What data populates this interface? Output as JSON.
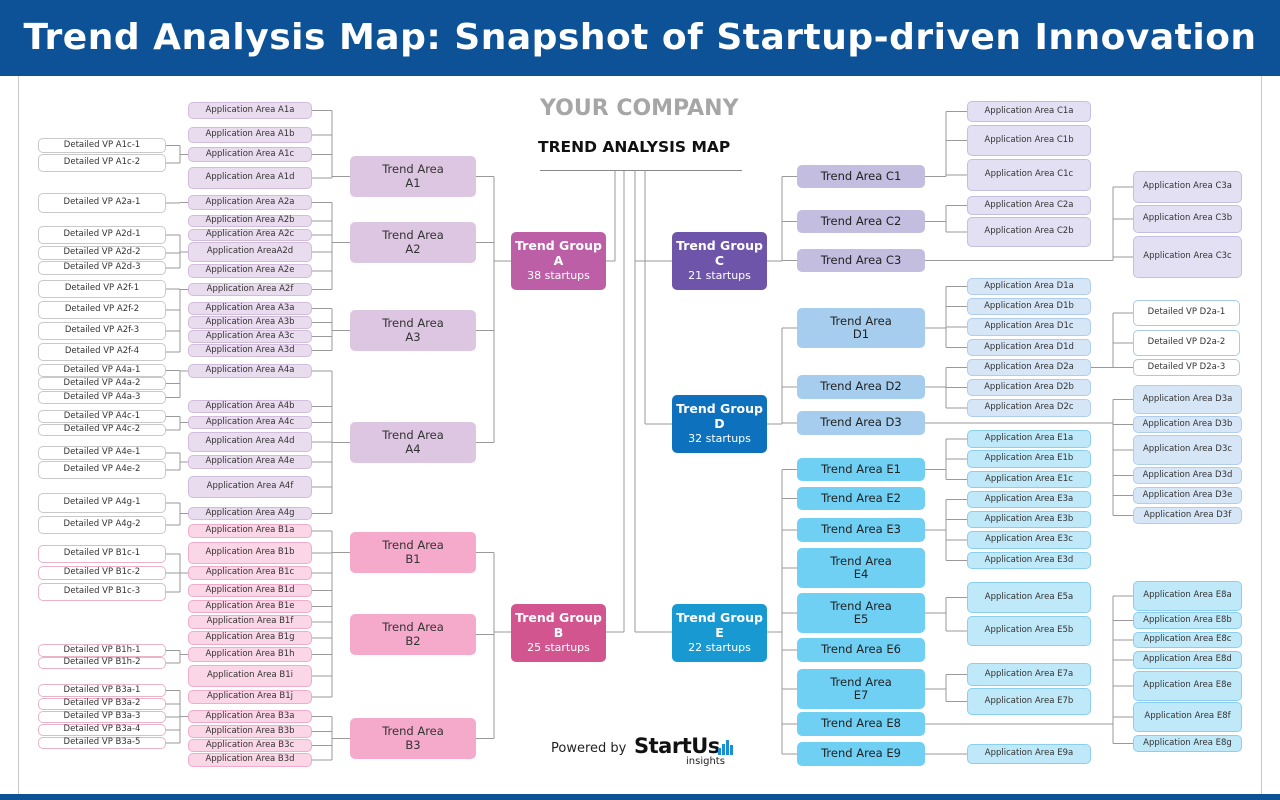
{
  "header": {
    "title": "Trend Analysis Map: Snapshot of Startup-driven Innovation"
  },
  "center": {
    "company": "YOUR COMPANY",
    "map_title": "TREND ANALYSIS MAP",
    "powered_by": "Powered by",
    "logo_brand": "StartUs",
    "logo_sub": "insights"
  },
  "trend_groups": [
    {
      "id": "A",
      "title": "Trend Group\nA",
      "startups": "38 startups"
    },
    {
      "id": "B",
      "title": "Trend Group\nB",
      "startups": "25 startups"
    },
    {
      "id": "C",
      "title": "Trend Group\nC",
      "startups": "21 startups"
    },
    {
      "id": "D",
      "title": "Trend Group\nD",
      "startups": "32 startups"
    },
    {
      "id": "E",
      "title": "Trend Group\nE",
      "startups": "22 startups"
    }
  ],
  "trend_areas": {
    "A1": "Trend Area\nA1",
    "A2": "Trend Area\nA2",
    "A3": "Trend Area\nA3",
    "A4": "Trend Area\nA4",
    "B1": "Trend Area\nB1",
    "B2": "Trend Area\nB2",
    "B3": "Trend Area\nB3",
    "C1": "Trend Area C1",
    "C2": "Trend Area C2",
    "C3": "Trend Area C3",
    "D1": "Trend Area\nD1",
    "D2": "Trend Area D2",
    "D3": "Trend Area D3",
    "E1": "Trend Area E1",
    "E2": "Trend Area E2",
    "E3": "Trend Area E3",
    "E4": "Trend Area\nE4",
    "E5": "Trend Area\nE5",
    "E6": "Trend Area E6",
    "E7": "Trend Area\nE7",
    "E8": "Trend Area E8",
    "E9": "Trend Area E9"
  },
  "application_areas": {
    "A1a": "Application Area A1a",
    "A1b": "Application Area A1b",
    "A1c": "Application Area A1c",
    "A1d": "Application Area A1d",
    "A2a": "Application Area A2a",
    "A2b": "Application Area A2b",
    "A2c": "Application Area A2c",
    "A2d": "Application AreaA2d",
    "A2e": "Application Area A2e",
    "A2f": "Application Area A2f",
    "A3a": "Application Area A3a",
    "A3b": "Application Area A3b",
    "A3c": "Application Area A3c",
    "A3d": "Application Area A3d",
    "A4a": "Application Area A4a",
    "A4b": "Application Area A4b",
    "A4c": "Application Area A4c",
    "A4d": "Application Area A4d",
    "A4e": "Application Area A4e",
    "A4f": "Application Area A4f",
    "A4g": "Application Area A4g",
    "B1a": "Application Area B1a",
    "B1b": "Application Area B1b",
    "B1c": "Application Area B1c",
    "B1d": "Application Area B1d",
    "B1e": "Application Area B1e",
    "B1f": "Application Area B1f",
    "B1g": "Application Area B1g",
    "B1h": "Application Area B1h",
    "B1i": "Application Area B1i",
    "B1j": "Application Area B1j",
    "B3a": "Application Area B3a",
    "B3b": "Application Area B3b",
    "B3c": "Application Area B3c",
    "B3d": "Application Area B3d",
    "C1a": "Application Area C1a",
    "C1b": "Application Area C1b",
    "C1c": "Application Area C1c",
    "C2a": "Application Area C2a",
    "C2b": "Application Area C2b",
    "C3a": "Application Area C3a",
    "C3b": "Application Area C3b",
    "C3c": "Application Area C3c",
    "D1a": "Application Area D1a",
    "D1b": "Application Area D1b",
    "D1c": "Application Area D1c",
    "D1d": "Application Area D1d",
    "D2a": "Application Area D2a",
    "D2b": "Application Area D2b",
    "D2c": "Application Area D2c",
    "D3a": "Application Area D3a",
    "D3b": "Application Area D3b",
    "D3c": "Application Area D3c",
    "D3d": "Application Area D3d",
    "D3e": "Application Area D3e",
    "D3f": "Application Area D3f",
    "E1a": "Application Area E1a",
    "E1b": "Application Area E1b",
    "E1c": "Application Area E1c",
    "E3a": "Application Area E3a",
    "E3b": "Application Area E3b",
    "E3c": "Application Area E3c",
    "E3d": "Application Area E3d",
    "E5a": "Application Area E5a",
    "E5b": "Application Area E5b",
    "E7a": "Application Area E7a",
    "E7b": "Application Area E7b",
    "E8a": "Application Area E8a",
    "E8b": "Application Area E8b",
    "E8c": "Application Area E8c",
    "E8d": "Application Area E8d",
    "E8e": "Application Area E8e",
    "E8f": "Application Area E8f",
    "E8g": "Application Area E8g",
    "E9a": "Application Area E9a"
  },
  "detailed_vps": {
    "A1c1": "Detailed VP  A1c-1",
    "A1c2": "Detailed VP  A1c-2",
    "A2a1": "Detailed VP  A2a-1",
    "A2d1": "Detailed VP  A2d-1",
    "A2d2": "Detailed VP  A2d-2",
    "A2d3": "Detailed VP  A2d-3",
    "A2f1": "Detailed VP  A2f-1",
    "A2f2": "Detailed VP  A2f-2",
    "A2f3": "Detailed VP  A2f-3",
    "A2f4": "Detailed VP  A2f-4",
    "A4a1": "Detailed VP  A4a-1",
    "A4a2": "Detailed VP  A4a-2",
    "A4a3": "Detailed VP  A4a-3",
    "A4c1": "Detailed VP  A4c-1",
    "A4c2": "Detailed VP  A4c-2",
    "A4e1": "Detailed VP  A4e-1",
    "A4e2": "Detailed VP  A4e-2",
    "A4g1": "Detailed VP  A4g-1",
    "A4g2": "Detailed VP  A4g-2",
    "B1c1": "Detailed VP  B1c-1",
    "B1c2": "Detailed VP  B1c-2",
    "B1c3": "Detailed VP  B1c-3",
    "B1h1": "Detailed VP  B1h-1",
    "B1h2": "Detailed VP  B1h-2",
    "B3a1": "Detailed VP  B3a-1",
    "B3a2": "Detailed VP  B3a-2",
    "B3a3": "Detailed VP  B3a-3",
    "B3a4": "Detailed VP  B3a-4",
    "B3a5": "Detailed VP  B3a-5",
    "D2a1": "Detailed VP  D2a-1",
    "D2a2": "Detailed VP  D2a-2",
    "D2a3": "Detailed VP  D2a-3"
  }
}
